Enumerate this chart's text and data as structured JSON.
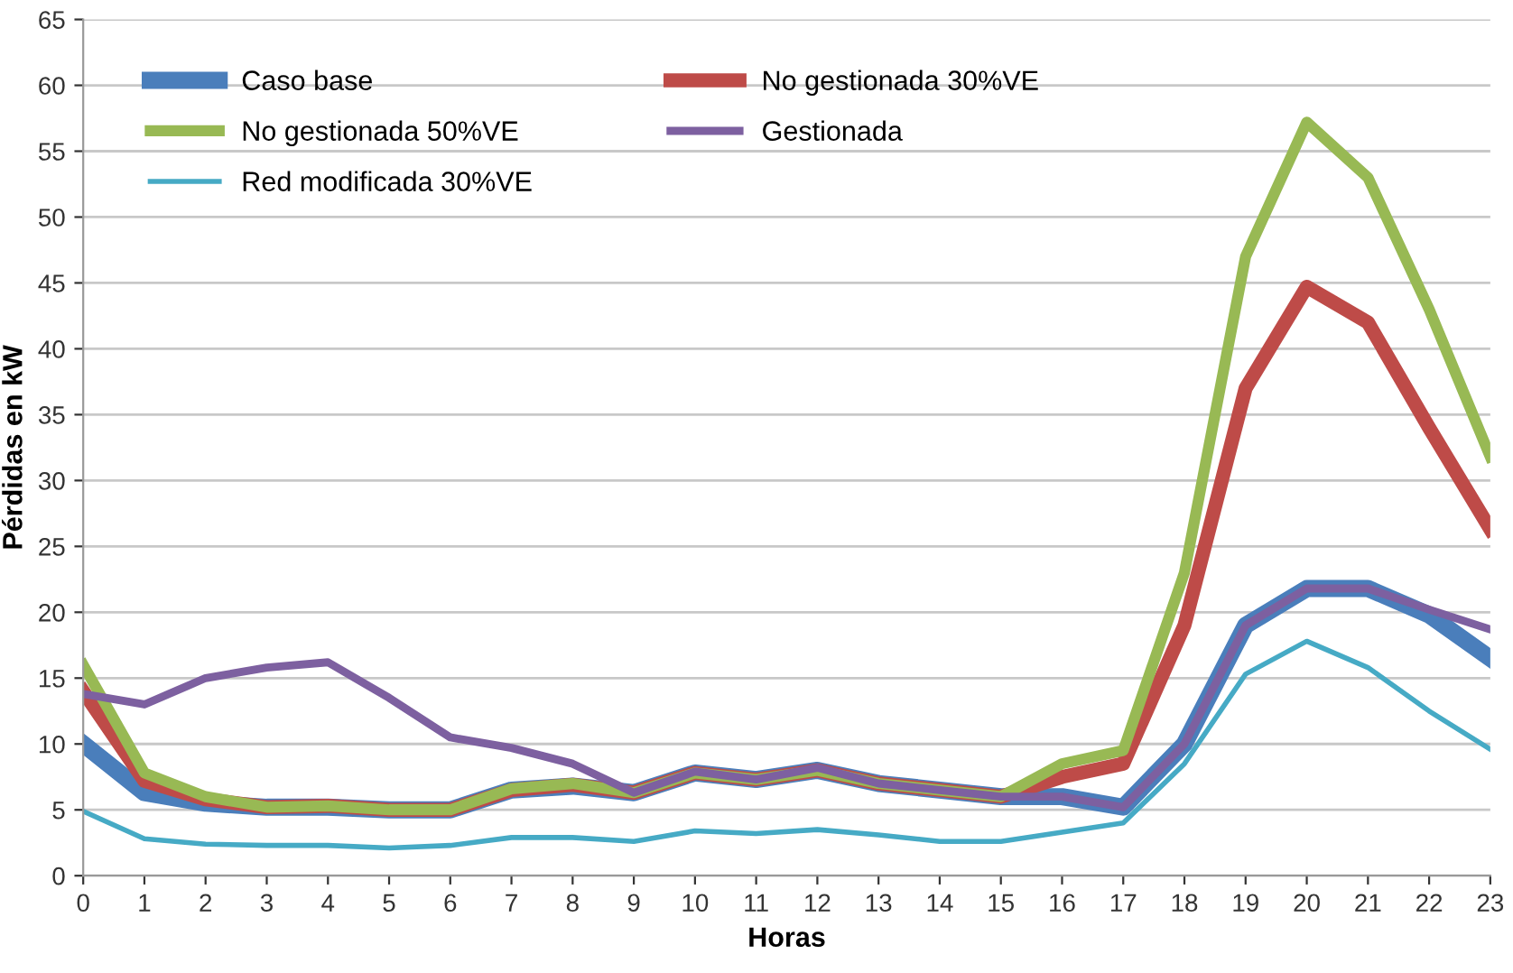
{
  "chart_data": {
    "type": "line",
    "xlabel": "Horas",
    "ylabel": "Pérdidas en kW",
    "x": [
      0,
      1,
      2,
      3,
      4,
      5,
      6,
      7,
      8,
      9,
      10,
      11,
      12,
      13,
      14,
      15,
      16,
      17,
      18,
      19,
      20,
      21,
      22,
      23
    ],
    "xlim": [
      0,
      23
    ],
    "xticks": [
      0,
      1,
      2,
      3,
      4,
      5,
      6,
      7,
      8,
      9,
      10,
      11,
      12,
      13,
      14,
      15,
      16,
      17,
      18,
      19,
      20,
      21,
      22,
      23
    ],
    "ylim": [
      0,
      65
    ],
    "yticks": [
      0,
      5,
      10,
      15,
      20,
      25,
      30,
      35,
      40,
      45,
      50,
      55,
      60,
      65
    ],
    "grid": "y",
    "legend": "top left",
    "marker": "none",
    "line_style": "solid",
    "series": [
      {
        "name": "Caso base",
        "color": "#4a7ebb",
        "values": [
          10,
          6.3,
          5.5,
          5.2,
          5.2,
          5.0,
          5.0,
          6.5,
          6.8,
          6.3,
          7.8,
          7.3,
          8.0,
          7.0,
          6.5,
          6.0,
          6.0,
          5.2,
          10.0,
          19.0,
          21.8,
          21.8,
          19.8,
          16.5
        ]
      },
      {
        "name": "No gestionada 30%VE",
        "color": "#be4b48",
        "values": [
          14,
          7.2,
          5.8,
          5.2,
          5.3,
          5.0,
          5.0,
          6.5,
          6.9,
          6.3,
          7.8,
          7.3,
          8.0,
          7.0,
          6.5,
          6.0,
          7.5,
          8.5,
          19,
          37,
          44.7,
          42,
          34,
          26.3
        ]
      },
      {
        "name": "No gestionada 50%VE",
        "color": "#98b954",
        "values": [
          16,
          7.8,
          6.0,
          5.2,
          5.3,
          5.0,
          5.0,
          6.6,
          7.0,
          6.3,
          7.8,
          7.3,
          8.0,
          7.0,
          6.5,
          6.0,
          8.5,
          9.5,
          23,
          47,
          57.2,
          53,
          43,
          31.8
        ]
      },
      {
        "name": "Gestionada",
        "color": "#7d60a0",
        "values": [
          13.8,
          13.0,
          15.0,
          15.8,
          16.2,
          13.5,
          10.5,
          9.7,
          8.5,
          6.3,
          7.9,
          7.3,
          8.2,
          7.0,
          6.5,
          6.0,
          6.0,
          5.2,
          10.0,
          19.0,
          21.8,
          21.8,
          20.2,
          18.7
        ]
      },
      {
        "name": "Red modificada 30%VE",
        "color": "#46aac5",
        "values": [
          4.9,
          2.8,
          2.4,
          2.3,
          2.3,
          2.1,
          2.3,
          2.9,
          2.9,
          2.6,
          3.4,
          3.2,
          3.5,
          3.1,
          2.6,
          2.6,
          3.3,
          4.0,
          8.5,
          15.3,
          17.8,
          15.8,
          12.5,
          9.6
        ]
      }
    ]
  }
}
